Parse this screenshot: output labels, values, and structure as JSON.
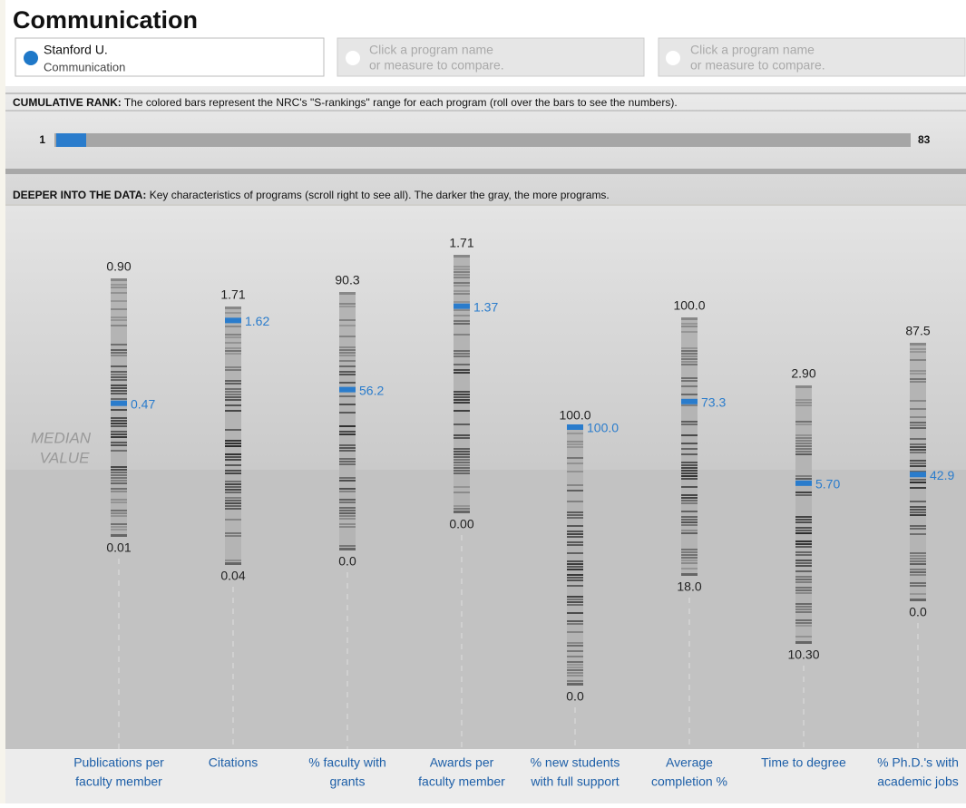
{
  "header": {
    "title": "Communication"
  },
  "compare": [
    {
      "name": "Stanford U.",
      "field": "Communication"
    },
    {
      "line1": "Click a program name",
      "line2": "or measure to compare."
    },
    {
      "line1": "Click a program name",
      "line2": "or measure to compare."
    }
  ],
  "rank": {
    "heading": "CUMULATIVE RANK:",
    "text": "The colored bars represent the NRC's \"S-rankings\" range for each program (roll over the bars to see the numbers).",
    "min": "1",
    "max": "83"
  },
  "deeper": {
    "heading": "DEEPER INTO THE DATA:",
    "text": "Key characteristics of programs (scroll right to see all). The darker the gray, the more programs."
  },
  "median": [
    "MEDIAN",
    "VALUE"
  ],
  "measures": [
    {
      "label": [
        "Publications per",
        "faculty member"
      ],
      "max": "0.90",
      "min": "0.01",
      "value": "0.47"
    },
    {
      "label": [
        "Citations"
      ],
      "max": "1.71",
      "min": "0.04",
      "value": "1.62"
    },
    {
      "label": [
        "% faculty with",
        "grants"
      ],
      "max": "90.3",
      "min": "0.0",
      "value": "56.2"
    },
    {
      "label": [
        "Awards per",
        "faculty member"
      ],
      "max": "1.71",
      "min": "0.00",
      "value": "1.37"
    },
    {
      "label": [
        "% new students",
        "with full support"
      ],
      "max": "100.0",
      "min": "0.0",
      "value": "100.0"
    },
    {
      "label": [
        "Average",
        "completion %"
      ],
      "max": "100.0",
      "min": "18.0",
      "value": "73.3"
    },
    {
      "label": [
        "Time to degree"
      ],
      "max": "2.90",
      "min": "10.30",
      "value": "5.70"
    },
    {
      "label": [
        "% Ph.D.'s with",
        "academic jobs"
      ],
      "max": "87.5",
      "min": "0.0",
      "value": "42.9"
    }
  ]
}
